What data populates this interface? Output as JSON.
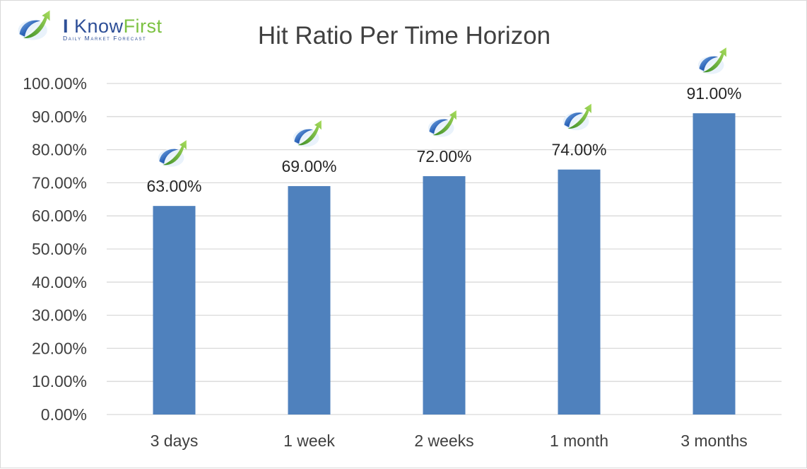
{
  "logo": {
    "name_i": "I ",
    "name_know": "Know",
    "name_first": "First",
    "tagline": "Daily Market Forecast"
  },
  "chart_data": {
    "type": "bar",
    "title": "Hit Ratio Per Time Horizon",
    "xlabel": "",
    "ylabel": "",
    "categories": [
      "3 days",
      "1 week",
      "2 weeks",
      "1 month",
      "3 months"
    ],
    "values": [
      0.63,
      0.69,
      0.72,
      0.74,
      0.91
    ],
    "data_labels": [
      "63.00%",
      "69.00%",
      "72.00%",
      "74.00%",
      "91.00%"
    ],
    "ylim": [
      0,
      1
    ],
    "yticks": [
      0,
      0.1,
      0.2,
      0.3,
      0.4,
      0.5,
      0.6,
      0.7,
      0.8,
      0.9,
      1.0
    ],
    "ytick_labels": [
      "0.00%",
      "10.00%",
      "20.00%",
      "30.00%",
      "40.00%",
      "50.00%",
      "60.00%",
      "70.00%",
      "80.00%",
      "90.00%",
      "100.00%"
    ],
    "grid": true,
    "legend": "none",
    "bar_color": "#4f81bd",
    "grid_color": "#d9d9d9",
    "label_icon": "i-know-first-logo-icon"
  }
}
